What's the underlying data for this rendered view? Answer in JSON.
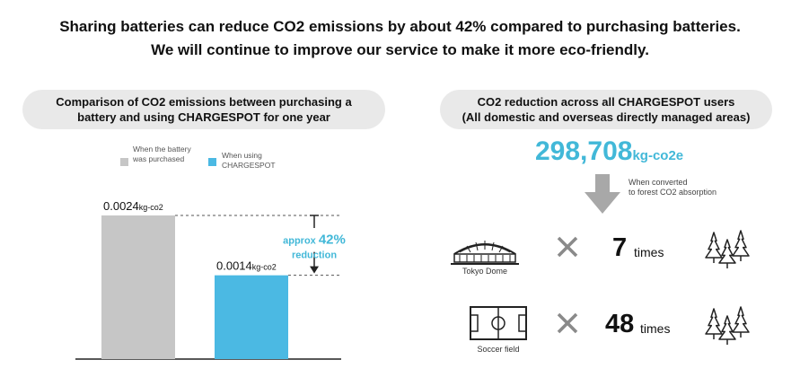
{
  "headline": {
    "line1": "Sharing batteries can reduce CO2 emissions by about 42% compared to purchasing batteries.",
    "line2": "We will continue to improve our service to make it more eco-friendly."
  },
  "left_panel": {
    "title_line1": "Comparison of CO2 emissions between purchasing a",
    "title_line2": "battery and using CHARGESPOT for one year"
  },
  "legend": [
    {
      "label": "When the battery was purchased",
      "color": "#c6c6c6"
    },
    {
      "label": "When using CHARGESPOT",
      "color": "#4bb9e3"
    }
  ],
  "chart_data": {
    "type": "bar",
    "title": "Comparison of CO2 emissions between purchasing a battery and using CHARGESPOT for one year",
    "categories": [
      "When the battery was purchased",
      "When using CHARGESPOT"
    ],
    "values": [
      0.0024,
      0.0014
    ],
    "value_labels": [
      "0.0024",
      "0.0014"
    ],
    "unit": "kg-co2",
    "colors": [
      "#c6c6c6",
      "#4bb9e3"
    ],
    "ylim": [
      0,
      0.003
    ],
    "annotation": {
      "prefix": "approx",
      "value": "42%",
      "suffix": "reduction",
      "color": "#42b8d8"
    }
  },
  "right_panel": {
    "title_line1": "CO2 reduction across all CHARGESPOT users",
    "title_line2": "(All domestic and overseas directly managed areas)",
    "total_value": "298,708",
    "total_unit": "kg-co2e",
    "arrow_label_line1": "When converted",
    "arrow_label_line2": "to forest CO2 absorption",
    "rows": [
      {
        "caption": "Tokyo Dome",
        "multiplier": "7",
        "times_label": "times"
      },
      {
        "caption": "Soccer field",
        "multiplier": "48",
        "times_label": "times"
      }
    ]
  },
  "icons": {
    "arrow": "down-arrow-icon",
    "cross": "multiply-icon",
    "forest": "forest-icon",
    "dome": "tokyo-dome-icon",
    "field": "soccer-field-icon"
  },
  "colors": {
    "accent": "#42b8d8",
    "pill_bg": "#e9e9e9",
    "gray_bar": "#c6c6c6",
    "cross": "#8a8a8a"
  }
}
